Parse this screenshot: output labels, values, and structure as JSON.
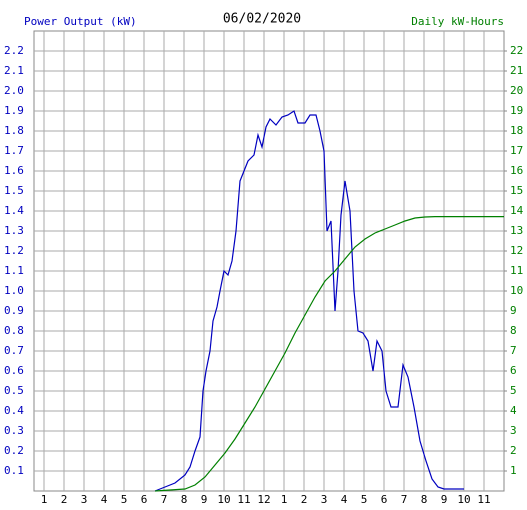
{
  "chart_data": {
    "type": "line",
    "title": "06/02/2020",
    "xlim": [
      0.5,
      24
    ],
    "xticks": [
      1,
      2,
      3,
      4,
      5,
      6,
      7,
      8,
      9,
      10,
      11,
      12,
      {
        "value": 13,
        "label": "1"
      },
      {
        "value": 14,
        "label": "2"
      },
      {
        "value": 15,
        "label": "3"
      },
      {
        "value": 16,
        "label": "4"
      },
      {
        "value": 17,
        "label": "5"
      },
      {
        "value": 18,
        "label": "6"
      },
      {
        "value": 19,
        "label": "7"
      },
      {
        "value": 20,
        "label": "8"
      },
      {
        "value": 21,
        "label": "9"
      },
      {
        "value": 22,
        "label": "10"
      },
      {
        "value": 23,
        "label": "11"
      }
    ],
    "ylim": [
      0,
      2.3
    ],
    "yticks": [
      0.1,
      0.2,
      0.3,
      0.4,
      0.5,
      0.6,
      0.7,
      0.8,
      0.9,
      {
        "value": 1.0,
        "label": "1.0"
      },
      1.1,
      1.2,
      1.3,
      1.4,
      1.5,
      1.6,
      1.7,
      1.8,
      1.9,
      {
        "value": 2.0,
        "label": "2.0"
      },
      2.1,
      2.2
    ],
    "y2lim": [
      0,
      23
    ],
    "y2ticks": [
      1,
      2,
      3,
      4,
      5,
      6,
      7,
      8,
      9,
      10,
      11,
      12,
      13,
      14,
      15,
      16,
      17,
      18,
      19,
      20,
      21,
      22
    ],
    "grid": true,
    "series": [
      {
        "name": "Power Output (kW)",
        "color": "#0000c0",
        "axis": "y",
        "x": [
          6.55,
          7.05,
          7.55,
          8.05,
          8.3,
          8.55,
          8.8,
          8.95,
          9.1,
          9.3,
          9.45,
          9.65,
          9.8,
          10.0,
          10.2,
          10.4,
          10.6,
          10.8,
          11.0,
          11.2,
          11.5,
          11.7,
          11.9,
          12.1,
          12.3,
          12.6,
          12.9,
          13.2,
          13.5,
          13.7,
          14.05,
          14.3,
          14.6,
          14.8,
          15.0,
          15.15,
          15.35,
          15.55,
          15.7,
          15.85,
          16.05,
          16.3,
          16.5,
          16.7,
          16.95,
          17.2,
          17.45,
          17.65,
          17.9,
          18.1,
          18.35,
          18.7,
          18.95,
          19.2,
          19.5,
          19.8,
          20.1,
          20.4,
          20.7,
          21.0,
          22.0
        ],
        "values": [
          0,
          0.02,
          0.04,
          0.08,
          0.12,
          0.2,
          0.27,
          0.5,
          0.6,
          0.7,
          0.85,
          0.92,
          1.0,
          1.1,
          1.08,
          1.15,
          1.3,
          1.55,
          1.6,
          1.65,
          1.68,
          1.78,
          1.72,
          1.82,
          1.86,
          1.83,
          1.87,
          1.88,
          1.9,
          1.84,
          1.84,
          1.88,
          1.88,
          1.8,
          1.7,
          1.3,
          1.35,
          0.9,
          1.1,
          1.38,
          1.55,
          1.4,
          1.0,
          0.8,
          0.79,
          0.75,
          0.6,
          0.75,
          0.7,
          0.5,
          0.42,
          0.42,
          0.63,
          0.57,
          0.42,
          0.25,
          0.15,
          0.06,
          0.02,
          0.01,
          0.01
        ]
      },
      {
        "name": "Daily kW-Hours",
        "color": "#008000",
        "axis": "y2",
        "x": [
          6.55,
          8.05,
          8.55,
          9.05,
          9.55,
          10.05,
          10.55,
          11.05,
          11.55,
          12.05,
          12.55,
          13.05,
          13.55,
          14.05,
          14.55,
          15.05,
          15.55,
          16.05,
          16.55,
          17.05,
          17.55,
          18.05,
          18.55,
          19.05,
          19.55,
          20.05,
          20.55,
          21.05,
          24
        ],
        "values": [
          0,
          0.1,
          0.3,
          0.7,
          1.3,
          1.9,
          2.6,
          3.4,
          4.2,
          5.1,
          6.0,
          6.9,
          7.9,
          8.8,
          9.7,
          10.5,
          11.0,
          11.6,
          12.2,
          12.6,
          12.9,
          13.1,
          13.3,
          13.5,
          13.65,
          13.7,
          13.72,
          13.72,
          13.72
        ]
      }
    ]
  }
}
